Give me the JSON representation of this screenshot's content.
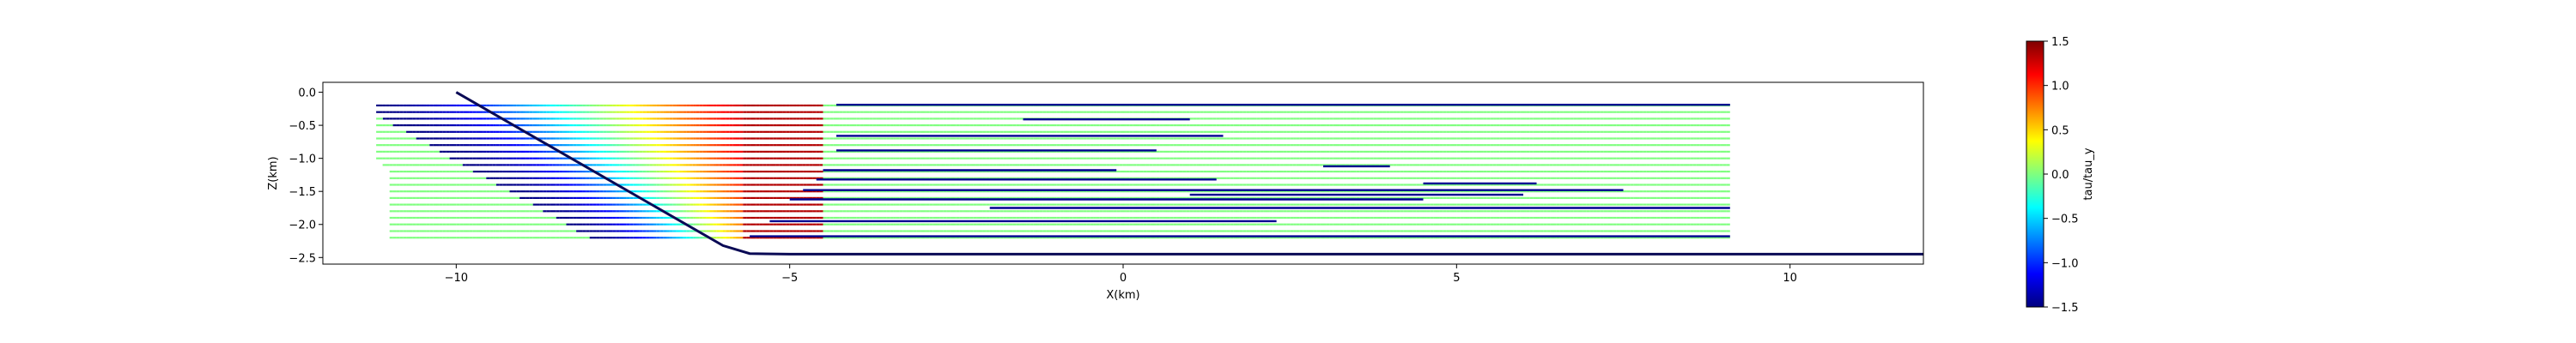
{
  "chart_data": {
    "type": "line",
    "title": "",
    "xlabel": "X(km)",
    "ylabel": "Z(km)",
    "xlim": [
      -12.0,
      12.0
    ],
    "ylim": [
      -2.6,
      0.15
    ],
    "x_ticks": [
      -10,
      -5,
      0,
      5,
      10
    ],
    "x_tick_labels": [
      "−10",
      "−5",
      "0",
      "5",
      "10"
    ],
    "y_ticks": [
      0.0,
      -0.5,
      -1.0,
      -1.5,
      -2.0,
      -2.5
    ],
    "y_tick_labels": [
      "0.0",
      "−0.5",
      "−1.0",
      "−1.5",
      "−2.0",
      "−2.5"
    ],
    "grid": false,
    "colormap": "jet",
    "colorbar": {
      "label": "tau/tau_y",
      "range": [
        -1.5,
        1.5
      ],
      "ticks": [
        1.5,
        1.0,
        0.5,
        0.0,
        -0.5,
        -1.0,
        -1.5
      ],
      "tick_labels": [
        "1.5",
        "1.0",
        "0.5",
        "0.0",
        "−0.5",
        "−1.0",
        "−1.5"
      ]
    },
    "boundary": {
      "name": "seafloor",
      "color": "#0a0a55",
      "x": [
        -10.0,
        -6.0,
        -5.6,
        -5.0,
        12.0
      ],
      "z": [
        0.0,
        -2.32,
        -2.44,
        -2.45,
        -2.45
      ]
    },
    "streamlines": [
      {
        "z": -0.2,
        "x_end": 9.1
      },
      {
        "z": -0.3,
        "x_end": 9.1
      },
      {
        "z": -0.4,
        "x_end": 9.1
      },
      {
        "z": -0.5,
        "x_end": 9.1
      },
      {
        "z": -0.6,
        "x_end": 9.1
      },
      {
        "z": -0.7,
        "x_end": 9.1
      },
      {
        "z": -0.8,
        "x_end": 9.1
      },
      {
        "z": -0.9,
        "x_end": 9.1
      },
      {
        "z": -1.0,
        "x_end": 9.1
      },
      {
        "z": -1.1,
        "x_end": 9.1
      },
      {
        "z": -1.2,
        "x_end": 9.1
      },
      {
        "z": -1.3,
        "x_end": 9.1
      },
      {
        "z": -1.4,
        "x_end": 9.1
      },
      {
        "z": -1.5,
        "x_end": 9.1
      },
      {
        "z": -1.6,
        "x_end": 9.1
      },
      {
        "z": -1.7,
        "x_end": 9.1
      },
      {
        "z": -1.8,
        "x_end": 9.1
      },
      {
        "z": -1.9,
        "x_end": 9.1
      },
      {
        "z": -2.0,
        "x_end": 9.1
      },
      {
        "z": -2.1,
        "x_end": 9.1
      },
      {
        "z": -2.2,
        "x_end": 9.1
      }
    ],
    "blue_bands": [
      {
        "z": -0.19,
        "x0": -4.3,
        "x1": 9.1
      },
      {
        "z": -0.41,
        "x0": -1.5,
        "x1": 1.0
      },
      {
        "z": -0.66,
        "x0": -4.3,
        "x1": 1.5
      },
      {
        "z": -0.88,
        "x0": -4.3,
        "x1": 0.5
      },
      {
        "z": -1.18,
        "x0": -4.5,
        "x1": -0.1
      },
      {
        "z": -1.32,
        "x0": -4.6,
        "x1": 1.4
      },
      {
        "z": -1.48,
        "x0": -4.8,
        "x1": 7.5
      },
      {
        "z": -1.62,
        "x0": -5.0,
        "x1": 4.5
      },
      {
        "z": -1.75,
        "x0": -2.0,
        "x1": 9.1
      },
      {
        "z": -1.95,
        "x0": -5.3,
        "x1": 2.3
      },
      {
        "z": -2.18,
        "x0": -5.6,
        "x1": 9.1
      },
      {
        "z": -1.12,
        "x0": 3.0,
        "x1": 4.0
      },
      {
        "z": -1.38,
        "x0": 4.5,
        "x1": 6.2
      },
      {
        "z": -1.55,
        "x0": 1.0,
        "x1": 6.0
      }
    ]
  }
}
